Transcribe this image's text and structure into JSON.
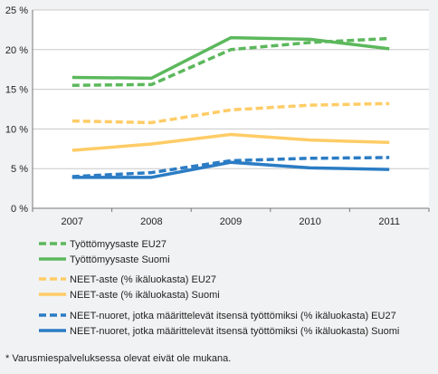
{
  "chart_data": {
    "type": "line",
    "categories": [
      "2007",
      "2008",
      "2009",
      "2010",
      "2011"
    ],
    "ylim": [
      0,
      25
    ],
    "yticks": [
      0,
      5,
      10,
      15,
      20,
      25
    ],
    "ytick_labels": [
      "0 %",
      "5 %",
      "10 %",
      "15 %",
      "20 %",
      "25 %"
    ],
    "grid": "horizontal",
    "legend_position": "bottom",
    "series": [
      {
        "name": "Työttömyysaste EU27",
        "values": [
          15.5,
          15.6,
          20.0,
          20.9,
          21.4
        ],
        "color": "#5cb85c",
        "style": "dashed"
      },
      {
        "name": "Työttömyysaste Suomi",
        "values": [
          16.5,
          16.4,
          21.5,
          21.3,
          20.1
        ],
        "color": "#5cb85c",
        "style": "solid"
      },
      {
        "name": "NEET-aste (% ikäluokasta) EU27",
        "values": [
          11.0,
          10.8,
          12.4,
          13.0,
          13.2
        ],
        "color": "#ffcc66",
        "style": "dashed"
      },
      {
        "name": "NEET-aste (% ikäluokasta) Suomi",
        "values": [
          7.3,
          8.1,
          9.3,
          8.6,
          8.3
        ],
        "color": "#ffcc66",
        "style": "solid"
      },
      {
        "name": "NEET-nuoret, jotka määrittelevät itsensä työttömiksi (% ikäluokasta) EU27",
        "values": [
          4.0,
          4.5,
          6.0,
          6.3,
          6.4
        ],
        "color": "#2b7cc4",
        "style": "dashed"
      },
      {
        "name": "NEET-nuoret, jotka määrittelevät itsensä työttömiksi (% ikäluokasta) Suomi",
        "values": [
          3.9,
          3.9,
          5.8,
          5.1,
          4.9
        ],
        "color": "#2b7cc4",
        "style": "solid"
      }
    ]
  },
  "footnote": "* Varusmiespalveluksessa olevat eivät ole mukana."
}
